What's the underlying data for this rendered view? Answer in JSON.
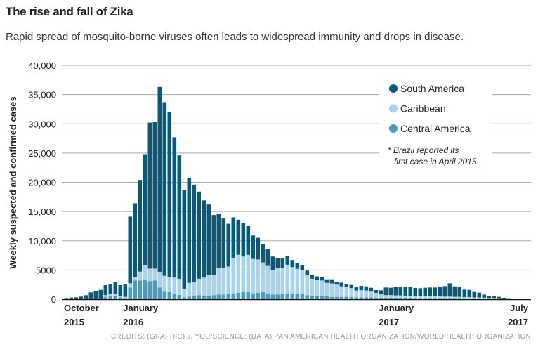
{
  "chart_data": {
    "type": "bar",
    "stacked": true,
    "title": "The rise and fall of Zika",
    "subtitle": "Rapid spread of mosquito-borne viruses often leads to widespread immunity and drops in disease.",
    "ylabel": "Weekly suspected and confirmed cases",
    "ylim": [
      0,
      40000
    ],
    "yticks": [
      "0",
      "5000",
      "10,000",
      "15,000",
      "20,000",
      "25,000",
      "30,000",
      "35,000",
      "40,000"
    ],
    "xticks": [
      {
        "label": [
          "October",
          "2015"
        ],
        "week": 1
      },
      {
        "label": [
          "January",
          "2016"
        ],
        "week": 14
      },
      {
        "label": [
          "January",
          "2017"
        ],
        "week": 66
      },
      {
        "label": [
          "July",
          "2017"
        ],
        "week": 93
      }
    ],
    "grid": true,
    "legend_position": "top-right",
    "annotation": [
      "* Brazil reported its",
      "first case in April 2015."
    ],
    "series": [
      {
        "name": "Central America",
        "color": "#4b9bbf",
        "values": [
          0,
          0,
          0,
          0,
          0,
          50,
          50,
          50,
          400,
          600,
          500,
          300,
          200,
          2000,
          3200,
          3200,
          3300,
          3100,
          3200,
          2000,
          1300,
          1200,
          840,
          720,
          320,
          440,
          600,
          700,
          500,
          600,
          700,
          800,
          800,
          900,
          1000,
          1100,
          1200,
          1200,
          1000,
          1100,
          1200,
          1000,
          800,
          800,
          900,
          1000,
          1000,
          1000,
          900,
          700,
          600,
          600,
          500,
          500,
          400,
          400,
          400,
          400,
          350,
          300,
          300,
          300,
          300,
          250,
          250,
          250,
          250,
          250,
          250,
          250,
          250,
          200,
          200,
          200,
          200,
          200,
          200,
          200,
          200,
          200,
          200,
          150,
          150,
          150,
          150,
          100,
          100,
          100,
          80,
          50,
          40,
          20
        ]
      },
      {
        "name": "Caribbean",
        "color": "#a9d3ea",
        "values": [
          0,
          0,
          0,
          0,
          0,
          0,
          50,
          50,
          300,
          300,
          400,
          200,
          200,
          720,
          640,
          1520,
          2540,
          2140,
          2040,
          2700,
          2700,
          2640,
          2860,
          2780,
          1480,
          2360,
          2400,
          2800,
          3200,
          3600,
          3500,
          4600,
          4600,
          4700,
          6100,
          6500,
          6100,
          6400,
          5900,
          5700,
          5100,
          4700,
          4200,
          4600,
          4500,
          4900,
          4500,
          4200,
          4100,
          3400,
          2900,
          2700,
          2700,
          2300,
          2300,
          2100,
          1800,
          1700,
          1550,
          1200,
          1250,
          1200,
          1000,
          850,
          650,
          450,
          450,
          400,
          400,
          350,
          350,
          350,
          350,
          300,
          300,
          300,
          300,
          250,
          250,
          200,
          200,
          200,
          200,
          150,
          150,
          150,
          100,
          100,
          70,
          50,
          40,
          20
        ]
      },
      {
        "name": "South America",
        "color": "#0b5878",
        "values": [
          200,
          280,
          320,
          440,
          680,
          1110,
          1340,
          1500,
          1700,
          1620,
          2020,
          1900,
          2120,
          11400,
          12560,
          15680,
          18960,
          24960,
          25060,
          31600,
          29700,
          28160,
          24000,
          21100,
          16900,
          18000,
          16600,
          14900,
          13200,
          12000,
          10200,
          9200,
          8400,
          7300,
          6900,
          6000,
          5700,
          4900,
          4000,
          3700,
          3100,
          2900,
          2300,
          1600,
          1600,
          1500,
          1200,
          1000,
          800,
          800,
          700,
          600,
          600,
          600,
          700,
          500,
          640,
          540,
          540,
          620,
          730,
          700,
          660,
          460,
          620,
          1300,
          1260,
          1430,
          1510,
          1520,
          1520,
          1370,
          1330,
          1460,
          1500,
          1500,
          1620,
          1790,
          2270,
          1800,
          1760,
          1290,
          1250,
          940,
          820,
          550,
          400,
          400,
          250,
          140,
          80,
          40
        ]
      }
    ],
    "legend_order": [
      "South America",
      "Caribbean",
      "Central America"
    ]
  },
  "credits": "CREDITS: (GRAPHIC) J. YOU/SCIENCE; (DATA) PAN AMERICAN HEALTH ORGANIZATION/WORLD HEALTH ORGANIZATION"
}
